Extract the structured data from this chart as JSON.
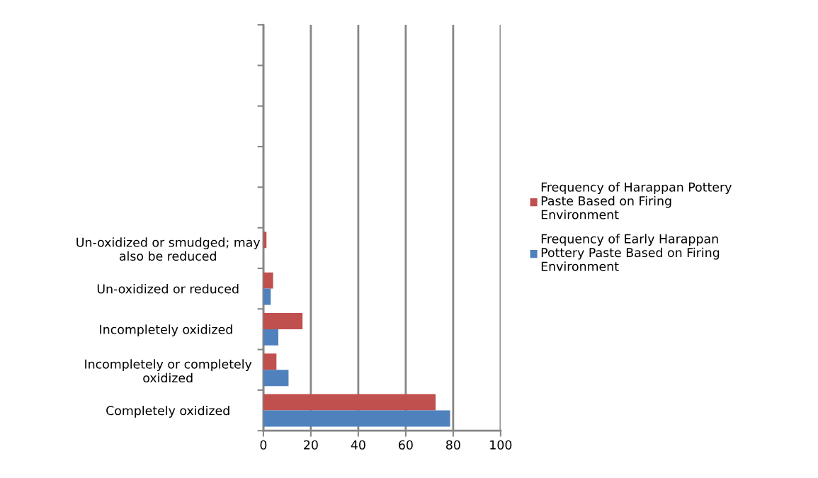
{
  "chart_data": {
    "type": "bar",
    "orientation": "horizontal",
    "categories": [
      null,
      null,
      null,
      null,
      null,
      "Un-oxidized or smudged; may\nalso be reduced",
      "Un-oxidized or reduced",
      "Incompletely oxidized ",
      "Incompletely or completely\noxidized",
      "Completely oxidized"
    ],
    "series": [
      {
        "name": "Frequency of Harappan Pottery\nPaste Based on Firing\nEnvironment",
        "color": "#c0504d",
        "values": [
          null,
          null,
          null,
          null,
          null,
          1.3,
          4.1,
          16.5,
          5.5,
          72.6
        ]
      },
      {
        "name": "Frequency of Early Harappan\nPottery Paste Based on Firing\nEnvironment",
        "color": "#4f81bd",
        "values": [
          null,
          null,
          null,
          null,
          null,
          null,
          3.1,
          6.3,
          10.6,
          78.7
        ]
      }
    ],
    "xlim": [
      0,
      100
    ],
    "xticks": [
      0,
      20,
      40,
      60,
      80,
      100
    ],
    "grid": "x",
    "legend": "right"
  }
}
